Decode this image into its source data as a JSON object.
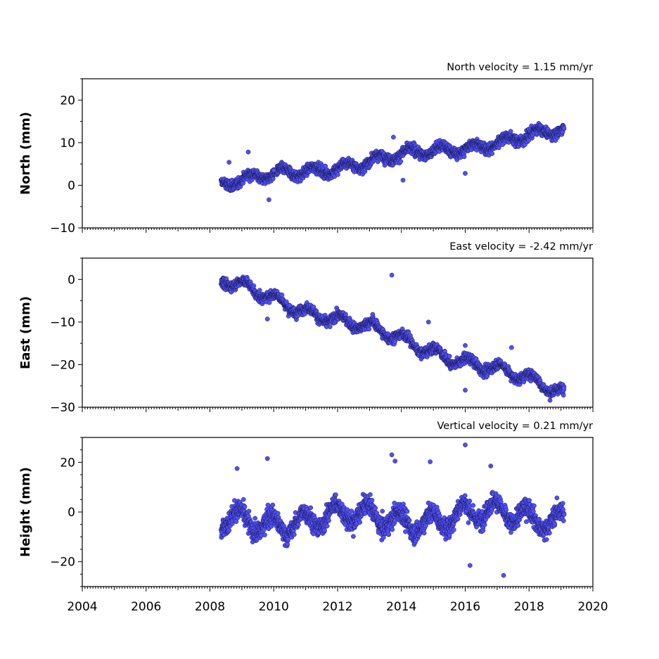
{
  "chart_data": [
    {
      "type": "scatter",
      "velocity_label": "North velocity = 1.15 mm/yr",
      "ylabel": "North (mm)",
      "xlim": [
        2004,
        2020
      ],
      "ylim": [
        -10,
        25
      ],
      "yticks": [
        -10,
        0,
        10,
        20
      ],
      "ytick_labels": [
        "−10",
        "0",
        "10",
        "20"
      ],
      "start": 2008.35,
      "end": 2019.1,
      "velocity": 1.15,
      "intercept": 0.3,
      "noise": 1.6,
      "seasonal": 1.0,
      "color": "#5050ff",
      "outliers": [
        [
          2008.6,
          5.4
        ],
        [
          2009.2,
          7.8
        ],
        [
          2009.85,
          -3.4
        ],
        [
          2010.0,
          3.5
        ],
        [
          2013.75,
          11.3
        ],
        [
          2016.0,
          2.8
        ],
        [
          2014.05,
          1.2
        ]
      ]
    },
    {
      "type": "scatter",
      "velocity_label": "East velocity = -2.42 mm/yr",
      "ylabel": "East (mm)",
      "xlim": [
        2004,
        2020
      ],
      "ylim": [
        -30,
        5
      ],
      "yticks": [
        -30,
        -20,
        -10,
        0
      ],
      "ytick_labels": [
        "−30",
        "−20",
        "−10",
        "0"
      ],
      "start": 2008.35,
      "end": 2019.1,
      "velocity": -2.42,
      "intercept": -0.5,
      "noise": 1.5,
      "seasonal": 1.2,
      "color": "#5050ff",
      "outliers": [
        [
          2013.7,
          1.0
        ],
        [
          2009.8,
          -9.3
        ],
        [
          2016.0,
          -26.0
        ],
        [
          2016.0,
          -15.5
        ],
        [
          2013.1,
          -8.2
        ],
        [
          2014.85,
          -10.0
        ],
        [
          2017.45,
          -16.0
        ]
      ]
    },
    {
      "type": "scatter",
      "velocity_label": "Vertical velocity = 0.21 mm/yr",
      "ylabel": "Height (mm)",
      "xlim": [
        2004,
        2020
      ],
      "ylim": [
        -30,
        30
      ],
      "yticks": [
        -20,
        0,
        20
      ],
      "ytick_labels": [
        "−20",
        "0",
        "20"
      ],
      "start": 2008.35,
      "end": 2019.1,
      "velocity": 0.21,
      "intercept": -3.5,
      "noise": 5.0,
      "seasonal": 4.0,
      "color": "#5050ff",
      "outliers": [
        [
          2008.85,
          17.5
        ],
        [
          2009.8,
          21.5
        ],
        [
          2013.7,
          23.0
        ],
        [
          2013.8,
          20.5
        ],
        [
          2014.9,
          20.2
        ],
        [
          2016.0,
          27.0
        ],
        [
          2016.8,
          18.5
        ],
        [
          2017.2,
          -25.5
        ],
        [
          2016.15,
          -21.5
        ]
      ]
    }
  ],
  "xaxis": {
    "ticks": [
      2004,
      2006,
      2008,
      2010,
      2012,
      2014,
      2016,
      2018,
      2020
    ],
    "tick_labels": [
      "2004",
      "2006",
      "2008",
      "2010",
      "2012",
      "2014",
      "2016",
      "2018",
      "2020"
    ]
  }
}
